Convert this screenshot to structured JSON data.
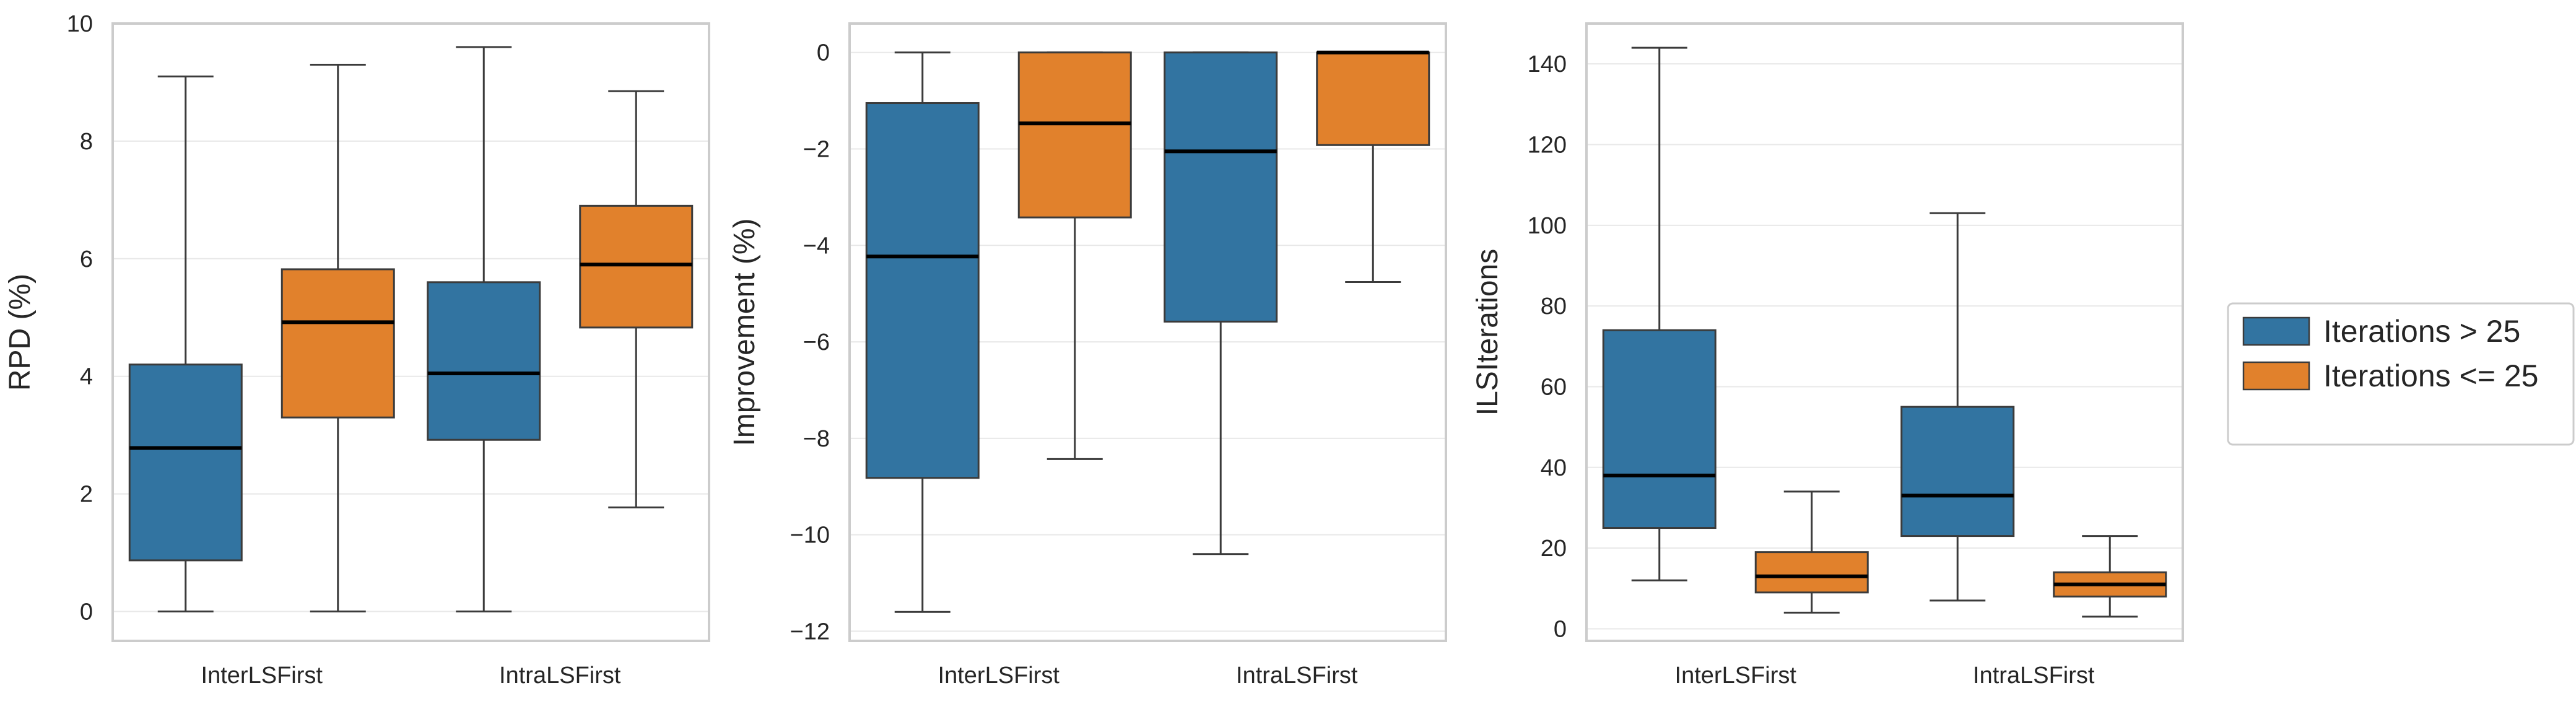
{
  "chart_data": [
    {
      "type": "box",
      "title": "",
      "xlabel": "",
      "ylabel": "RPD (%)",
      "ylim": [
        -0.5,
        10
      ],
      "yticks": [
        0,
        2,
        4,
        6,
        8,
        10
      ],
      "categories": [
        "InterLSFirst",
        "IntraLSFirst"
      ],
      "grid": "horizontal",
      "series": [
        {
          "name": "Iterations > 25",
          "boxes": [
            {
              "whislo": 0,
              "q1": 0.87,
              "med": 2.78,
              "q3": 4.2,
              "whishi": 9.1
            },
            {
              "whislo": 0,
              "q1": 2.92,
              "med": 4.05,
              "q3": 5.6,
              "whishi": 9.6
            }
          ]
        },
        {
          "name": "Iterations <= 25",
          "boxes": [
            {
              "whislo": 0,
              "q1": 3.3,
              "med": 4.92,
              "q3": 5.82,
              "whishi": 9.3
            },
            {
              "whislo": 1.77,
              "q1": 4.83,
              "med": 5.9,
              "q3": 6.9,
              "whishi": 8.85
            }
          ]
        }
      ]
    },
    {
      "type": "box",
      "title": "",
      "xlabel": "",
      "ylabel": "Improvement (%)",
      "ylim": [
        -12.2,
        0.6
      ],
      "yticks": [
        -12,
        -10,
        -8,
        -6,
        -4,
        -2,
        0
      ],
      "categories": [
        "InterLSFirst",
        "IntraLSFirst"
      ],
      "grid": "horizontal",
      "series": [
        {
          "name": "Iterations > 25",
          "boxes": [
            {
              "whislo": -11.6,
              "q1": -8.82,
              "med": -4.23,
              "q3": -1.05,
              "whishi": 0
            },
            {
              "whislo": -10.4,
              "q1": -5.58,
              "med": -2.05,
              "q3": 0,
              "whishi": 0
            }
          ]
        },
        {
          "name": "Iterations <= 25",
          "boxes": [
            {
              "whislo": -8.43,
              "q1": -3.42,
              "med": -1.47,
              "q3": 0,
              "whishi": 0
            },
            {
              "whislo": -4.76,
              "q1": -1.92,
              "med": 0,
              "q3": 0,
              "whishi": 0
            }
          ]
        }
      ]
    },
    {
      "type": "box",
      "title": "",
      "xlabel": "",
      "ylabel": "ILSIterations",
      "ylim": [
        -3,
        150
      ],
      "yticks": [
        0,
        20,
        40,
        60,
        80,
        100,
        120,
        140
      ],
      "categories": [
        "InterLSFirst",
        "IntraLSFirst"
      ],
      "grid": "horizontal",
      "series": [
        {
          "name": "Iterations > 25",
          "boxes": [
            {
              "whislo": 12,
              "q1": 25,
              "med": 38,
              "q3": 74,
              "whishi": 144
            },
            {
              "whislo": 7,
              "q1": 23,
              "med": 33,
              "q3": 55,
              "whishi": 103
            }
          ]
        },
        {
          "name": "Iterations <= 25",
          "boxes": [
            {
              "whislo": 4,
              "q1": 9,
              "med": 13,
              "q3": 19,
              "whishi": 34
            },
            {
              "whislo": 3,
              "q1": 8,
              "med": 11,
              "q3": 14,
              "whishi": 23
            }
          ]
        }
      ]
    }
  ],
  "legend": {
    "placement": "right",
    "items": [
      {
        "label": "Iterations > 25",
        "color": "#3274a1"
      },
      {
        "label": "Iterations <= 25",
        "color": "#e1812c"
      }
    ]
  },
  "colors": {
    "series": [
      "#3274a1",
      "#e1812c"
    ],
    "frame": "#cccccc",
    "grid": "#e8e8e8",
    "line": "#3b3b3b",
    "median": "#000000"
  }
}
